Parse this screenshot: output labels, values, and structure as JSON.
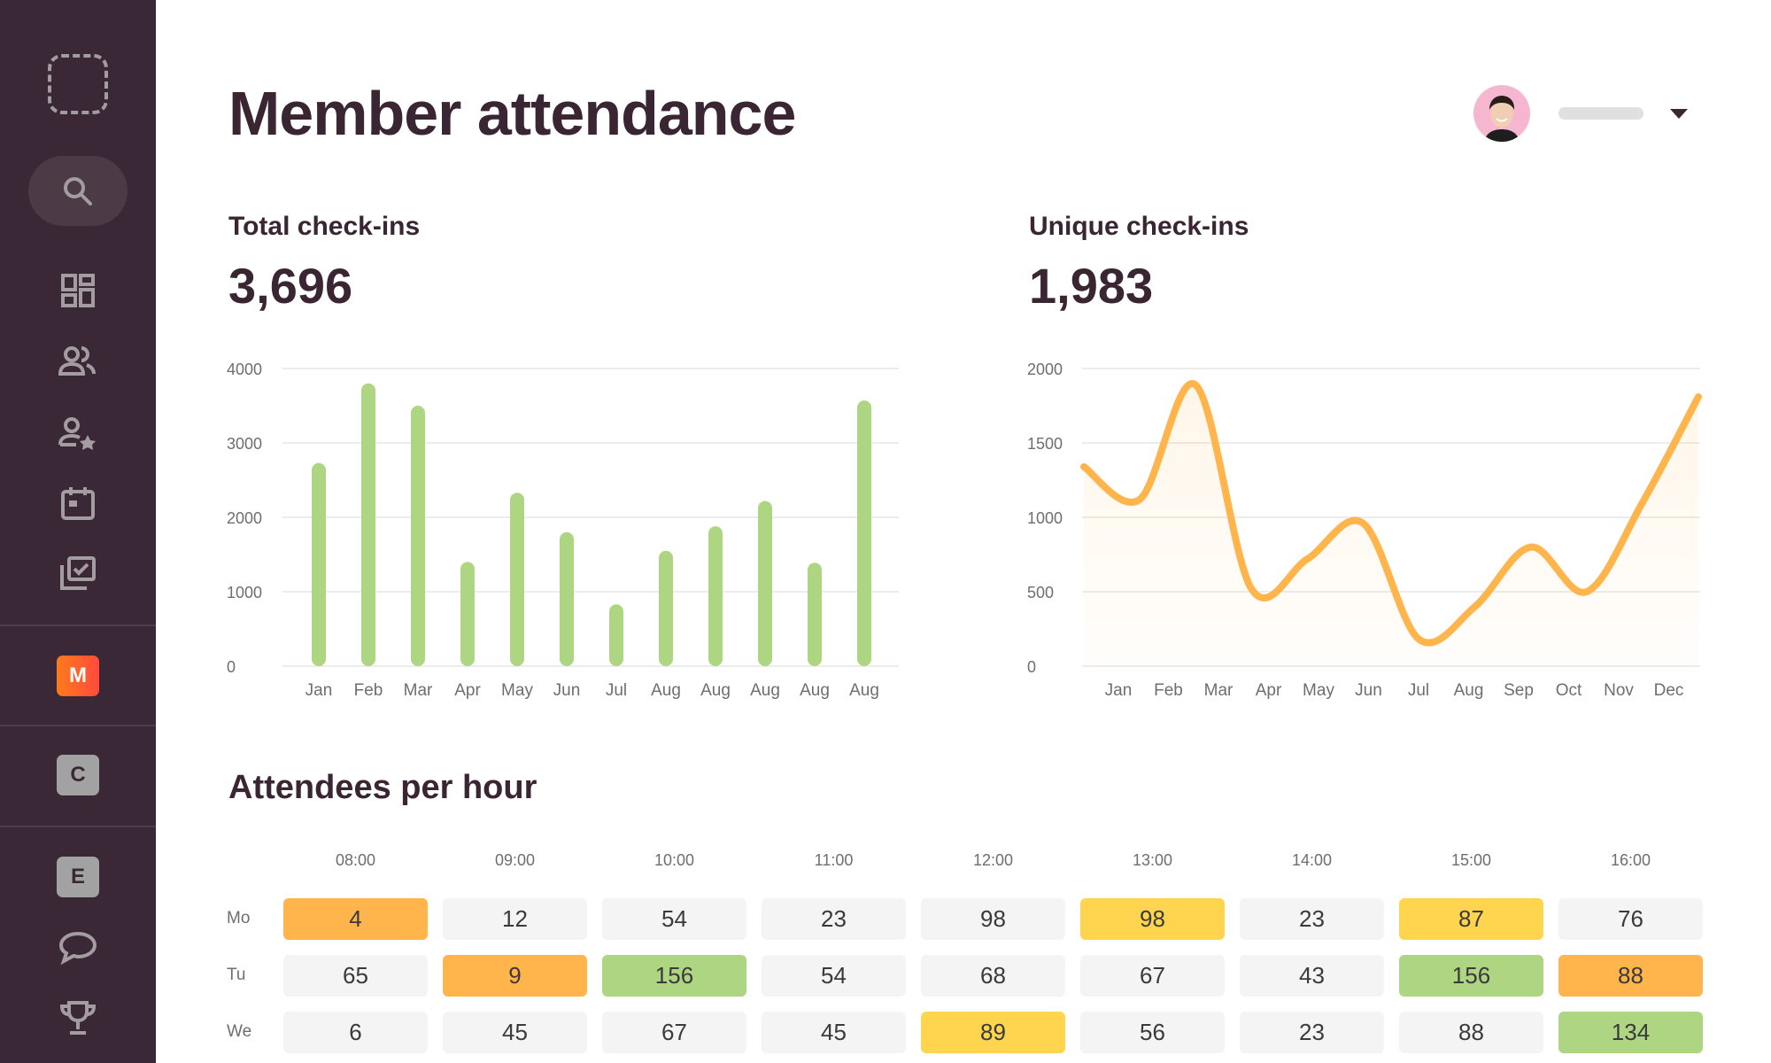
{
  "sidebar": {
    "items": [
      {
        "name": "search",
        "icon": "search-icon"
      },
      {
        "name": "dashboard",
        "icon": "dashboard-icon"
      },
      {
        "name": "members",
        "icon": "users-icon"
      },
      {
        "name": "favorites",
        "icon": "user-star-icon"
      },
      {
        "name": "calendar",
        "icon": "calendar-icon"
      },
      {
        "name": "tasks",
        "icon": "checklist-icon"
      }
    ],
    "workspaces": [
      {
        "letter": "M",
        "active": true
      },
      {
        "letter": "C"
      },
      {
        "letter": "E"
      }
    ],
    "bottom": [
      {
        "name": "chat",
        "icon": "chat-icon"
      },
      {
        "name": "trophy",
        "icon": "trophy-icon"
      }
    ]
  },
  "header": {
    "title": "Member attendance"
  },
  "stats": {
    "total": {
      "label": "Total check-ins",
      "value": "3,696"
    },
    "unique": {
      "label": "Unique check-ins",
      "value": "1,983"
    }
  },
  "colors": {
    "sidebar": "#3b2836",
    "bar": "#aed581",
    "line": "#ffb54c",
    "orange": "#ffb54c",
    "yellow": "#ffd54f",
    "green": "#aed581",
    "neutral": "#f4f4f4"
  },
  "chart_data": [
    {
      "type": "bar",
      "categories": [
        "Jan",
        "Feb",
        "Mar",
        "Apr",
        "May",
        "Jun",
        "Jul",
        "Aug",
        "Aug",
        "Aug",
        "Aug",
        "Aug"
      ],
      "values": [
        2730,
        3800,
        3500,
        1400,
        2330,
        1800,
        830,
        1550,
        1880,
        2220,
        1390,
        3570
      ],
      "ylim": [
        0,
        4000
      ],
      "yticks": [
        "0",
        "1000",
        "2000",
        "3000",
        "4000"
      ],
      "grid": true
    },
    {
      "type": "area",
      "categories": [
        "Jan",
        "Feb",
        "Mar",
        "Apr",
        "May",
        "Jun",
        "Jul",
        "Aug",
        "Sep",
        "Oct",
        "Nov",
        "Dec"
      ],
      "values": [
        1340,
        1120,
        1890,
        520,
        720,
        960,
        180,
        400,
        800,
        500,
        1100,
        1810
      ],
      "ylim": [
        0,
        2000
      ],
      "yticks": [
        "0",
        "500",
        "1000",
        "1500",
        "2000"
      ],
      "grid": true,
      "smooth": true
    }
  ],
  "heatmap": {
    "title": "Attendees per hour",
    "hours": [
      "08:00",
      "09:00",
      "10:00",
      "11:00",
      "12:00",
      "13:00",
      "14:00",
      "15:00",
      "16:00"
    ],
    "rows": [
      {
        "day": "Mo",
        "values": [
          "4",
          "12",
          "54",
          "23",
          "98",
          "98",
          "23",
          "87",
          "76"
        ],
        "colors": [
          "orange",
          "neutral",
          "neutral",
          "neutral",
          "neutral",
          "yellow",
          "neutral",
          "yellow",
          "neutral"
        ]
      },
      {
        "day": "Tu",
        "values": [
          "65",
          "9",
          "156",
          "54",
          "68",
          "67",
          "43",
          "156",
          "88"
        ],
        "colors": [
          "neutral",
          "orange",
          "green",
          "neutral",
          "neutral",
          "neutral",
          "neutral",
          "green",
          "orange"
        ]
      },
      {
        "day": "We",
        "values": [
          "6",
          "45",
          "67",
          "45",
          "89",
          "56",
          "23",
          "88",
          "134"
        ],
        "colors": [
          "neutral",
          "neutral",
          "neutral",
          "neutral",
          "yellow",
          "neutral",
          "neutral",
          "neutral",
          "green"
        ]
      }
    ]
  }
}
